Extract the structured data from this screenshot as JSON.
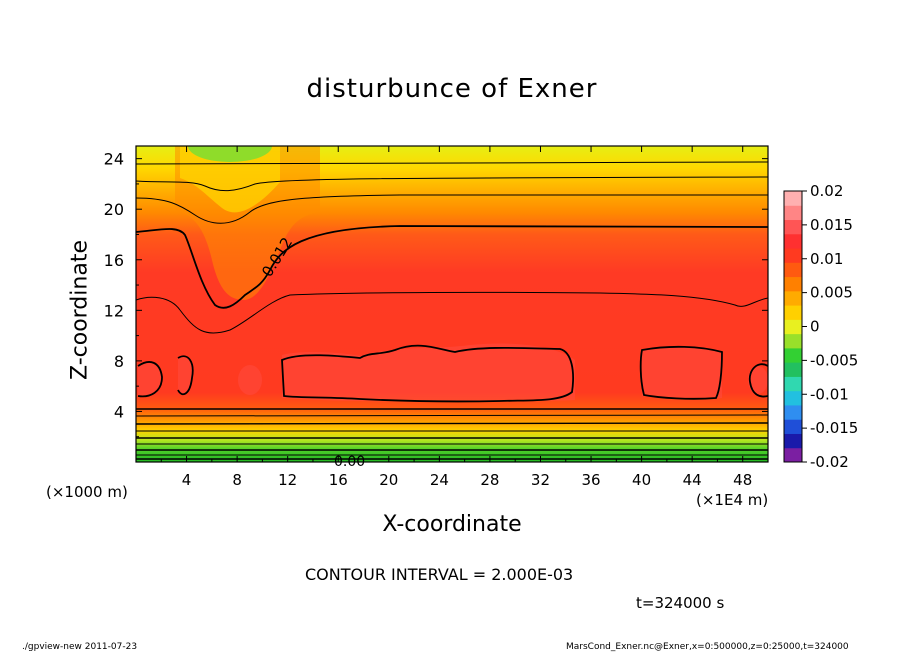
{
  "chart_data": {
    "type": "heatmap",
    "title": "disturbunce of Exner",
    "xlabel": "X-coordinate",
    "ylabel": "Z-coordinate",
    "x_multiplier_label": "(×1E4 m)",
    "y_multiplier_label": "(×1000 m)",
    "xlim": [
      0,
      50
    ],
    "ylim": [
      0,
      25
    ],
    "x_ticks": [
      4,
      8,
      12,
      16,
      20,
      24,
      28,
      32,
      36,
      40,
      44,
      48
    ],
    "y_ticks": [
      4,
      8,
      12,
      16,
      20,
      24
    ],
    "colorbar": {
      "ticks": [
        "0.02",
        "0.015",
        "0.01",
        "0.005",
        "0",
        "-0.005",
        "-0.01",
        "-0.015",
        "-0.02"
      ],
      "range": [
        -0.02,
        0.02
      ],
      "colors": [
        "#7b1fa2",
        "#1a1aaa",
        "#1f4fd8",
        "#2f8ef0",
        "#22c0e0",
        "#30d8b0",
        "#22c060",
        "#33d033",
        "#99e02a",
        "#e8f020",
        "#ffd000",
        "#ffab00",
        "#ff8000",
        "#ff5a10",
        "#ff3a20",
        "#ff3030",
        "#ff5555",
        "#ff8585",
        "#ffb0b0"
      ]
    },
    "contour_labels": [
      "0.012",
      "0.00"
    ],
    "contour_interval_label": "CONTOUR INTERVAL = 2.000E-03",
    "time_label": "t=324000 s"
  },
  "footer": {
    "left": "./gpview-new   2011-07-23",
    "right": "MarsCond_Exner.nc@Exner,x=0:500000,z=0:25000,t=324000"
  }
}
